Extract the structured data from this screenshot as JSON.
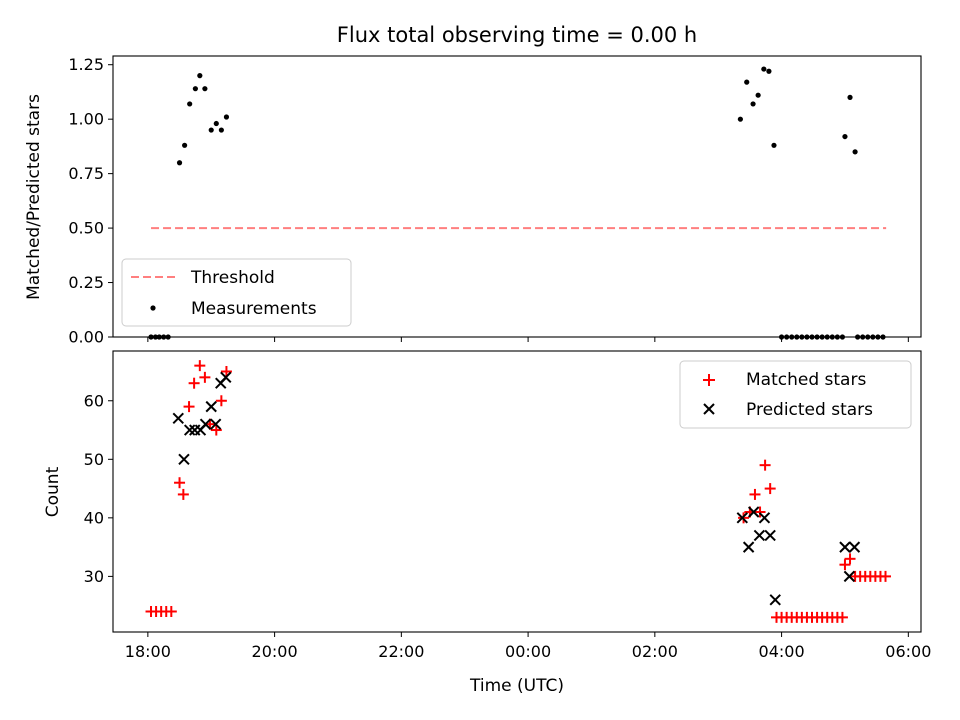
{
  "chart_data": [
    {
      "type": "scatter",
      "title": "Flux total observing time = 0.00 h",
      "xlabel": "",
      "ylabel": "Matched/Predicted stars",
      "x_unit": "hours since 18:00 UTC",
      "xlim": [
        -0.55,
        12.2
      ],
      "ylim": [
        0,
        1.29
      ],
      "yticks": [
        0.0,
        0.25,
        0.5,
        0.75,
        1.0,
        1.25
      ],
      "ytick_labels": [
        "0.00",
        "0.25",
        "0.50",
        "0.75",
        "1.00",
        "1.25"
      ],
      "legend": {
        "position": "lower-left",
        "entries": [
          "Threshold",
          "Measurements"
        ]
      },
      "threshold": {
        "name": "Threshold",
        "value": 0.5,
        "x_range": [
          0.05,
          11.65
        ],
        "color": "#ff7f7f"
      },
      "series": [
        {
          "name": "Measurements",
          "color": "#000000",
          "points": [
            [
              0.05,
              0.0
            ],
            [
              0.12,
              0.0
            ],
            [
              0.18,
              0.0
            ],
            [
              0.25,
              0.0
            ],
            [
              0.32,
              0.0
            ],
            [
              0.5,
              0.8
            ],
            [
              0.58,
              0.88
            ],
            [
              0.66,
              1.07
            ],
            [
              0.75,
              1.14
            ],
            [
              0.82,
              1.2
            ],
            [
              0.9,
              1.14
            ],
            [
              1.0,
              0.95
            ],
            [
              1.08,
              0.98
            ],
            [
              1.16,
              0.95
            ],
            [
              1.24,
              1.01
            ],
            [
              9.35,
              1.0
            ],
            [
              9.45,
              1.17
            ],
            [
              9.55,
              1.07
            ],
            [
              9.63,
              1.11
            ],
            [
              9.72,
              1.23
            ],
            [
              9.8,
              1.22
            ],
            [
              9.88,
              0.88
            ],
            [
              10.0,
              0.0
            ],
            [
              10.08,
              0.0
            ],
            [
              10.16,
              0.0
            ],
            [
              10.24,
              0.0
            ],
            [
              10.32,
              0.0
            ],
            [
              10.4,
              0.0
            ],
            [
              10.48,
              0.0
            ],
            [
              10.56,
              0.0
            ],
            [
              10.64,
              0.0
            ],
            [
              10.72,
              0.0
            ],
            [
              10.8,
              0.0
            ],
            [
              10.88,
              0.0
            ],
            [
              10.96,
              0.0
            ],
            [
              11.0,
              0.92
            ],
            [
              11.08,
              1.1
            ],
            [
              11.16,
              0.85
            ],
            [
              11.2,
              0.0
            ],
            [
              11.28,
              0.0
            ],
            [
              11.36,
              0.0
            ],
            [
              11.44,
              0.0
            ],
            [
              11.52,
              0.0
            ],
            [
              11.6,
              0.0
            ]
          ]
        }
      ]
    },
    {
      "type": "scatter",
      "title": "",
      "xlabel": "Time (UTC)",
      "ylabel": "Count",
      "x_unit": "hours since 18:00 UTC",
      "xlim": [
        -0.55,
        12.2
      ],
      "ylim": [
        20.5,
        68.5
      ],
      "xticks": [
        0,
        2,
        4,
        6,
        8,
        10,
        12
      ],
      "xtick_labels": [
        "18:00",
        "20:00",
        "22:00",
        "00:00",
        "02:00",
        "04:00",
        "06:00"
      ],
      "yticks": [
        30,
        40,
        50,
        60
      ],
      "ytick_labels": [
        "30",
        "40",
        "50",
        "60"
      ],
      "legend": {
        "position": "top-right",
        "entries": [
          "Matched stars",
          "Predicted stars"
        ]
      },
      "series": [
        {
          "name": "Matched stars",
          "marker": "plus",
          "color": "#ff0000",
          "points": [
            [
              0.05,
              24
            ],
            [
              0.13,
              24
            ],
            [
              0.21,
              24
            ],
            [
              0.29,
              24
            ],
            [
              0.37,
              24
            ],
            [
              0.5,
              46
            ],
            [
              0.56,
              44
            ],
            [
              0.65,
              59
            ],
            [
              0.73,
              63
            ],
            [
              0.82,
              66
            ],
            [
              0.9,
              64
            ],
            [
              0.98,
              56
            ],
            [
              1.08,
              55
            ],
            [
              1.16,
              60
            ],
            [
              1.24,
              65
            ],
            [
              9.4,
              40
            ],
            [
              9.5,
              41
            ],
            [
              9.58,
              44
            ],
            [
              9.66,
              41
            ],
            [
              9.74,
              49
            ],
            [
              9.82,
              45
            ],
            [
              9.92,
              23
            ],
            [
              10.0,
              23
            ],
            [
              10.08,
              23
            ],
            [
              10.16,
              23
            ],
            [
              10.24,
              23
            ],
            [
              10.32,
              23
            ],
            [
              10.4,
              23
            ],
            [
              10.48,
              23
            ],
            [
              10.56,
              23
            ],
            [
              10.64,
              23
            ],
            [
              10.72,
              23
            ],
            [
              10.8,
              23
            ],
            [
              10.88,
              23
            ],
            [
              10.96,
              23
            ],
            [
              11.0,
              32
            ],
            [
              11.08,
              33
            ],
            [
              11.16,
              30
            ],
            [
              11.24,
              30
            ],
            [
              11.32,
              30
            ],
            [
              11.4,
              30
            ],
            [
              11.48,
              30
            ],
            [
              11.56,
              30
            ],
            [
              11.64,
              30
            ]
          ]
        },
        {
          "name": "Predicted stars",
          "marker": "cross",
          "color": "#000000",
          "points": [
            [
              0.48,
              57
            ],
            [
              0.57,
              50
            ],
            [
              0.66,
              55
            ],
            [
              0.74,
              55
            ],
            [
              0.83,
              55
            ],
            [
              0.91,
              56
            ],
            [
              1.0,
              59
            ],
            [
              1.07,
              56
            ],
            [
              1.15,
              63
            ],
            [
              1.23,
              64
            ],
            [
              9.38,
              40
            ],
            [
              9.48,
              35
            ],
            [
              9.56,
              41
            ],
            [
              9.65,
              37
            ],
            [
              9.73,
              40
            ],
            [
              9.82,
              37
            ],
            [
              9.9,
              26
            ],
            [
              11.0,
              35
            ],
            [
              11.07,
              30
            ],
            [
              11.15,
              35
            ]
          ]
        }
      ]
    }
  ]
}
